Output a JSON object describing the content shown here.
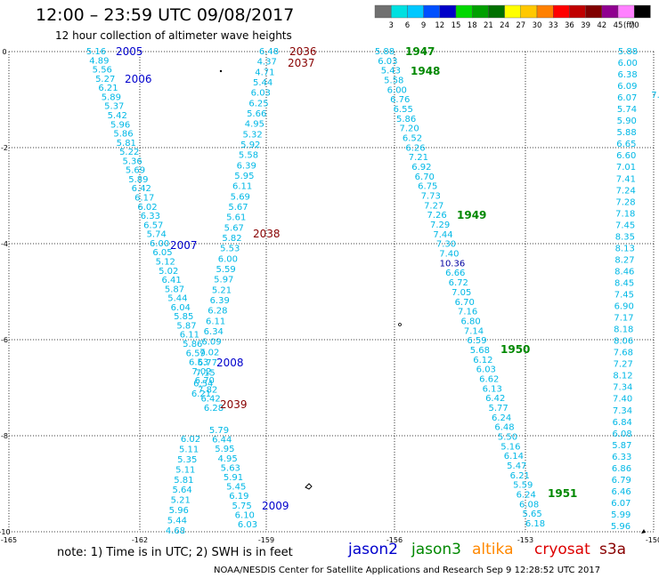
{
  "header": {
    "title": "12:00  –  23:59 UTC 09/08/2017",
    "subtitle": "12 hour collection of altimeter wave heights"
  },
  "colorbar": {
    "ticks": [
      "3",
      "6",
      "9",
      "12",
      "15",
      "18",
      "21",
      "24",
      "27",
      "30",
      "33",
      "36",
      "39",
      "42",
      "45",
      "70"
    ],
    "unit": "(ft)",
    "colors": [
      "#707070",
      "#00e0e0",
      "#00c8ff",
      "#0050ff",
      "#0000c8",
      "#00d800",
      "#00a000",
      "#007000",
      "#ffff00",
      "#ffc800",
      "#ff8000",
      "#ff0000",
      "#c00000",
      "#800000",
      "#900090",
      "#ff80ff",
      "#000000"
    ]
  },
  "axes": {
    "x_labels": [
      "-165",
      "-162",
      "-159",
      "-156",
      "-153",
      "-150"
    ],
    "y_labels": [
      "0",
      "-2",
      "-4",
      "-6",
      "-8",
      "-10"
    ]
  },
  "passes": [
    {
      "label": "2005",
      "sat": "jason2"
    },
    {
      "label": "2006",
      "sat": "jason2"
    },
    {
      "label": "2007",
      "sat": "jason2"
    },
    {
      "label": "2008",
      "sat": "jason2"
    },
    {
      "label": "2009",
      "sat": "jason2"
    },
    {
      "label": "2036",
      "sat": "cryosat"
    },
    {
      "label": "2037",
      "sat": "cryosat"
    },
    {
      "label": "2038",
      "sat": "cryosat"
    },
    {
      "label": "2039",
      "sat": "cryosat"
    },
    {
      "label": "1947",
      "sat": "jason3"
    },
    {
      "label": "1948",
      "sat": "jason3"
    },
    {
      "label": "1949",
      "sat": "jason3"
    },
    {
      "label": "1950",
      "sat": "jason3"
    },
    {
      "label": "1951",
      "sat": "jason3"
    }
  ],
  "tracks": {
    "track_a": [
      "5.16",
      "4.89",
      "5.56",
      "5.27",
      "6.21",
      "5.89",
      "5.37",
      "5.42",
      "5.96",
      "5.86",
      "5.81",
      "5.22",
      "5.36",
      "5.69",
      "5.89",
      "6.42",
      "6.17",
      "6.02",
      "6.33",
      "6.57",
      "5.74",
      "6.00",
      "6.05",
      "5.12",
      "5.02",
      "6.41",
      "5.87",
      "5.44",
      "6.04",
      "5.85",
      "5.87",
      "6.11",
      "5.86",
      "6.59",
      "6.53",
      "7.02",
      "6.70",
      "7.82",
      "6.42",
      "6.28"
    ],
    "track_b": [
      "6.48",
      "4.37",
      "4.71",
      "5.44",
      "6.03",
      "6.25",
      "5.66",
      "4.95",
      "5.32",
      "5.92",
      "5.58",
      "6.39",
      "5.95",
      "6.11",
      "5.69",
      "5.67",
      "5.61",
      "5.67",
      "5.82",
      "5.53",
      "6.00",
      "5.59",
      "5.97",
      "5.21",
      "6.39",
      "6.28",
      "6.11",
      "6.34",
      "6.09",
      "7.02",
      "6.77",
      "7.15",
      "6.54",
      "6.21"
    ],
    "track_c": [
      "6.02",
      "5.11",
      "5.35",
      "5.11",
      "5.81",
      "5.64",
      "5.21",
      "5.96",
      "5.44",
      "4.68"
    ],
    "track_d": [
      "5.79",
      "6.44",
      "5.95",
      "4.95",
      "5.63",
      "5.91",
      "5.45",
      "6.19",
      "5.75",
      "6.10",
      "6.03"
    ],
    "track_e": [
      "5.88",
      "6.03",
      "5.43",
      "5.58",
      "6.00",
      "6.76",
      "6.55",
      "5.86",
      "7.20",
      "6.52",
      "6.26",
      "7.21",
      "6.92",
      "6.70",
      "6.75",
      "7.73",
      "7.27",
      "7.26",
      "7.29",
      "7.44",
      "7.30",
      "7.40",
      "10.36",
      "6.66",
      "6.72",
      "7.05",
      "6.70",
      "7.16",
      "6.80",
      "7.14",
      "6.59",
      "5.68",
      "6.12",
      "6.03",
      "6.62",
      "6.13",
      "6.42",
      "5.77",
      "6.24",
      "6.48",
      "5.50",
      "5.16",
      "6.14",
      "5.47",
      "6.21",
      "5.59",
      "6.24",
      "6.08",
      "5.65",
      "6.18"
    ],
    "track_f": [
      "5.88",
      "6.00",
      "6.38",
      "6.09",
      "6.07",
      "5.74",
      "5.90",
      "5.88",
      "6.65",
      "6.60",
      "7.01",
      "7.41",
      "7.24",
      "7.28",
      "7.18",
      "7.45",
      "8.35",
      "8.13",
      "8.27",
      "8.46",
      "8.45",
      "7.45",
      "6.90",
      "7.17",
      "8.18",
      "8.06",
      "7.68",
      "7.27",
      "8.12",
      "7.34",
      "7.40",
      "7.34",
      "6.84",
      "6.08",
      "5.87",
      "6.33",
      "6.86",
      "6.79",
      "6.46",
      "6.07",
      "5.99",
      "5.96"
    ]
  },
  "track_f_partial": "7.",
  "note": "note:  1) Time is in UTC;  2) SWH is in feet",
  "legend": [
    {
      "name": "jason2",
      "color": "#0000cc"
    },
    {
      "name": "jason3",
      "color": "#008800"
    },
    {
      "name": "altika",
      "color": "#ff8800"
    },
    {
      "name": "cryosat",
      "color": "#dd0000"
    },
    {
      "name": "s3a",
      "color": "#880000"
    }
  ],
  "footer": "NOAA/NESDIS Center for Satellite Applications and Research    Sep  9 12:28:52 UTC 2017"
}
